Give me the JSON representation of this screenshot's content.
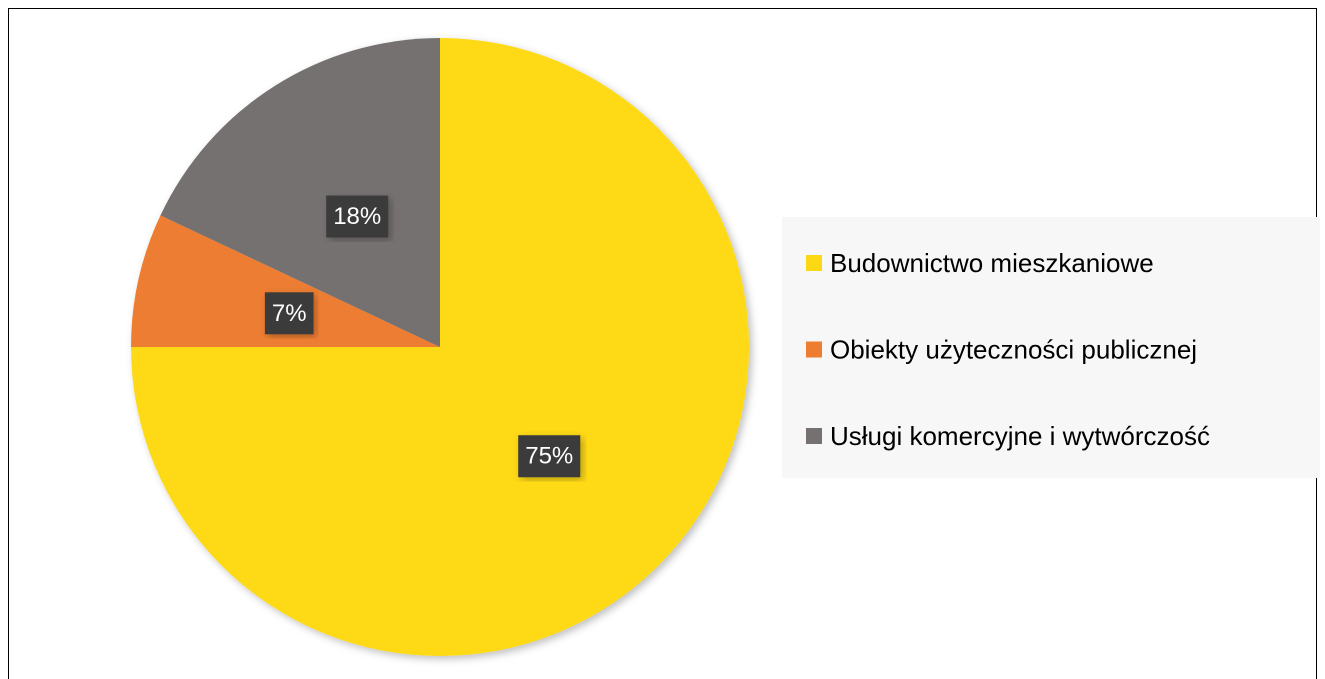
{
  "chart_data": {
    "type": "pie",
    "categories": [
      "Budownictwo mieszkaniowe",
      "Obiekty użyteczności publicznej",
      "Usługi komercyjne i wytwórczość"
    ],
    "values": [
      75,
      7,
      18
    ],
    "value_labels": [
      "75%",
      "7%",
      "18%"
    ],
    "colors": [
      "#fdd915",
      "#ed7d31",
      "#767171"
    ],
    "legend": "right"
  }
}
